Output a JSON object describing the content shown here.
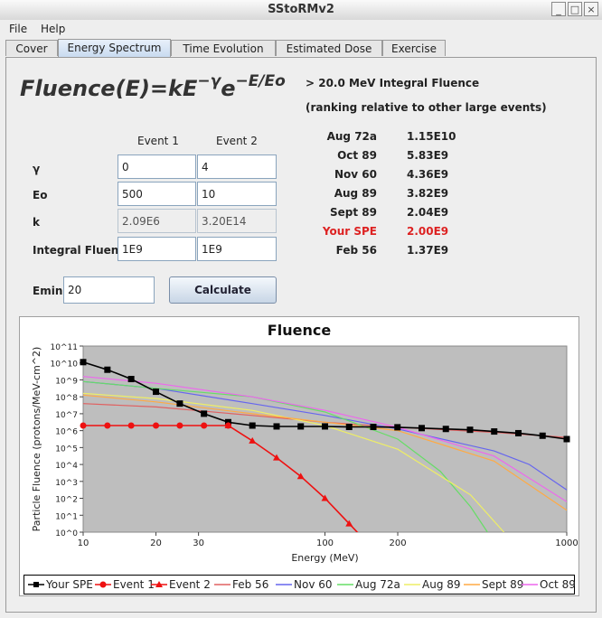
{
  "window": {
    "title": "SStoRMv2"
  },
  "menu": [
    "File",
    "Help"
  ],
  "tabs": [
    "Cover",
    "Energy Spectrum",
    "Time Evolution",
    "Estimated Dose",
    "Exercise"
  ],
  "active_tab": "Energy Spectrum",
  "formula": {
    "main": "Fluence(E)=kE",
    "exp1": "−γ",
    "mid": "e",
    "exp2": "−E/Eo"
  },
  "params": {
    "col1": "Event 1",
    "col2": "Event 2",
    "rows": [
      {
        "label": "γ",
        "e1": "0",
        "e2": "4",
        "readonly": false
      },
      {
        "label": "Eo",
        "e1": "500",
        "e2": "10",
        "readonly": false
      },
      {
        "label": "k",
        "e1": "2.09E6",
        "e2": "3.20E14",
        "readonly": true
      },
      {
        "label": "Integral Fluen...",
        "e1": "1E9",
        "e2": "1E9",
        "readonly": false
      }
    ]
  },
  "emin": {
    "label": "Emin",
    "value": "20"
  },
  "calculate_label": "Calculate",
  "ranking": {
    "title": "> 20.0 MeV Integral Fluence",
    "subtitle": "(ranking relative to other large events)",
    "rows": [
      {
        "event": "Aug 72a",
        "value": "1.15E10",
        "highlight": false
      },
      {
        "event": "Oct 89",
        "value": "5.83E9",
        "highlight": false
      },
      {
        "event": "Nov 60",
        "value": "4.36E9",
        "highlight": false
      },
      {
        "event": "Aug 89",
        "value": "3.82E9",
        "highlight": false
      },
      {
        "event": "Sept 89",
        "value": "2.04E9",
        "highlight": false
      },
      {
        "event": "Your SPE",
        "value": "2.00E9",
        "highlight": true
      },
      {
        "event": "Feb 56",
        "value": "1.37E9",
        "highlight": false
      }
    ],
    "highlight_color": "#dd2222"
  },
  "chart_data": {
    "type": "line",
    "title": "Fluence",
    "xlabel": "Energy (MeV)",
    "ylabel": "Particle Fluence (protons/MeV-cm^2)",
    "xscale": "log",
    "yscale": "log",
    "xlim": [
      10,
      1000
    ],
    "ylim_exp": [
      0,
      11
    ],
    "x_ticks": [
      "10",
      "20",
      "30",
      "100",
      "200",
      "1000"
    ],
    "y_ticks": [
      "10^0",
      "10^1",
      "10^2",
      "10^3",
      "10^4",
      "10^5",
      "10^6",
      "10^7",
      "10^8",
      "10^9",
      "10^10",
      "10^11"
    ],
    "legend_placement": "bottom",
    "series": [
      {
        "name": "Your SPE",
        "color": "#000000",
        "marker": "square",
        "x": [
          10,
          12.6,
          15.8,
          20,
          25.1,
          31.6,
          39.8,
          50.1,
          63.1,
          79.4,
          100,
          125.9,
          158.5,
          199.5,
          251.2,
          316.2,
          398.1,
          501.2,
          631,
          794.3,
          1000
        ],
        "log10y": [
          10.05,
          9.6,
          9.05,
          8.3,
          7.6,
          7.0,
          6.5,
          6.3,
          6.25,
          6.25,
          6.25,
          6.22,
          6.22,
          6.2,
          6.15,
          6.1,
          6.05,
          5.95,
          5.85,
          5.7,
          5.5
        ]
      },
      {
        "name": "Event 1",
        "color": "#ee1111",
        "marker": "circle",
        "x": [
          10,
          12.6,
          15.8,
          20,
          25.1,
          31.6,
          39.8
        ],
        "log10y": [
          6.3,
          6.3,
          6.3,
          6.3,
          6.3,
          6.3,
          6.3
        ]
      },
      {
        "name": "Event 2",
        "color": "#ee1111",
        "marker": "triangle",
        "x": [
          39.8,
          50.1,
          63.1,
          79.4,
          100,
          125.9,
          158.5
        ],
        "log10y": [
          6.3,
          5.4,
          4.4,
          3.3,
          2.0,
          0.5,
          -1
        ]
      },
      {
        "name": "Feb 56",
        "color": "#e06060",
        "marker": "none",
        "x": [
          10,
          20,
          50,
          100,
          200,
          500,
          1000
        ],
        "log10y": [
          7.6,
          7.4,
          6.9,
          6.5,
          6.2,
          5.9,
          5.6
        ]
      },
      {
        "name": "Nov 60",
        "color": "#6666ee",
        "marker": "none",
        "x": [
          10,
          20,
          50,
          100,
          200,
          500,
          700,
          1000
        ],
        "log10y": [
          8.9,
          8.5,
          7.6,
          6.9,
          6.1,
          4.8,
          4.0,
          2.5
        ]
      },
      {
        "name": "Aug 72a",
        "color": "#66dd66",
        "marker": "none",
        "x": [
          10,
          20,
          50,
          100,
          200,
          300,
          400,
          470
        ],
        "log10y": [
          8.9,
          8.5,
          8.0,
          7.1,
          5.5,
          3.6,
          1.5,
          0
        ]
      },
      {
        "name": "Aug 89",
        "color": "#eeee66",
        "marker": "none",
        "x": [
          10,
          20,
          50,
          100,
          200,
          400,
          550
        ],
        "log10y": [
          8.2,
          7.9,
          7.2,
          6.3,
          4.9,
          2.2,
          0
        ]
      },
      {
        "name": "Sept 89",
        "color": "#ffaa44",
        "marker": "none",
        "x": [
          10,
          20,
          50,
          100,
          200,
          500,
          1000
        ],
        "log10y": [
          8.1,
          7.7,
          7.0,
          6.5,
          6.0,
          4.2,
          1.3
        ]
      },
      {
        "name": "Oct 89",
        "color": "#ee66ee",
        "marker": "none",
        "x": [
          10,
          20,
          50,
          100,
          200,
          500,
          1000
        ],
        "log10y": [
          9.2,
          8.8,
          8.0,
          7.2,
          6.2,
          4.5,
          1.8
        ]
      }
    ]
  }
}
